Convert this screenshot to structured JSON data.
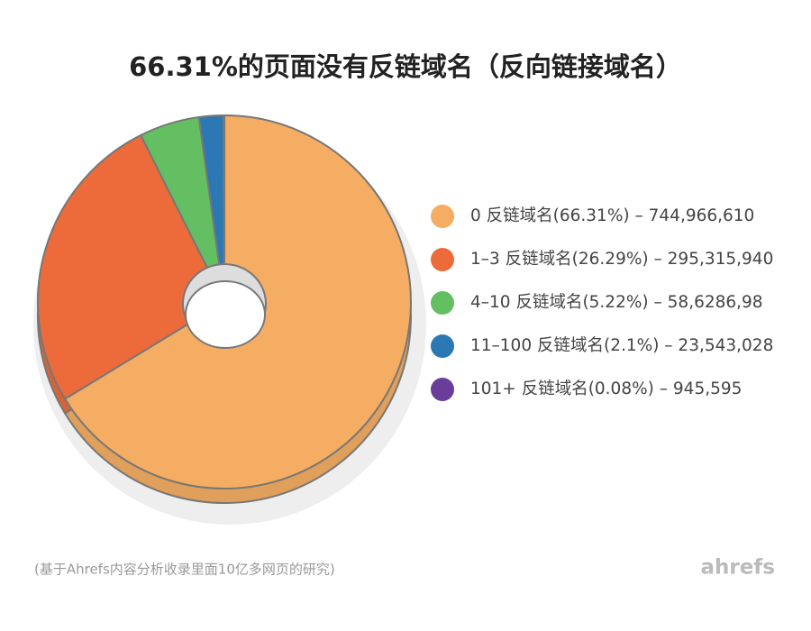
{
  "chart_data": {
    "type": "pie",
    "title": "66.31%的页面没有反链域名（反向链接域名）",
    "categories": [
      "0 反链域名(66.31%) – 744,966,610",
      "1–3 反链域名(26.29%) – 295,315,940",
      "4–10 反链域名(5.22%) – 58,6286,98",
      "11–100 反链域名(2.1%) – 23,543,028",
      "101+ 反链域名(0.08%) – 945,595"
    ],
    "values": [
      66.31,
      26.29,
      5.22,
      2.1,
      0.08
    ],
    "colors": [
      "#f4ad62",
      "#ed6b3a",
      "#64bf63",
      "#2b78b5",
      "#6a3d9a"
    ],
    "note": "(基于Ahrefs内容分析收录里面10亿多网页的研究)",
    "brand": "ahrefs"
  }
}
